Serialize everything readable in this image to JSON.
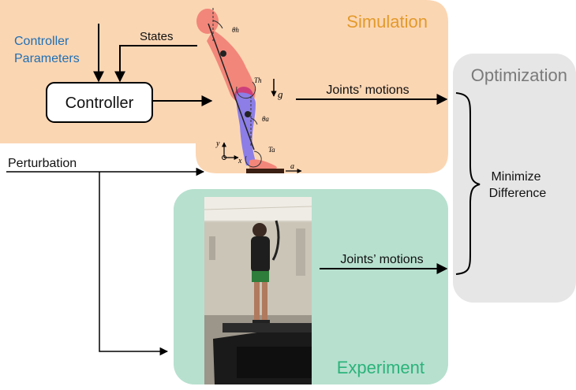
{
  "colors": {
    "simulation_bg": "#fbd6b3",
    "experiment_bg": "#b7e0cf",
    "optimization_bg": "#e6e6e6",
    "simulation_title": "#e39a2b",
    "experiment_title": "#2bb37a",
    "optimization_title": "#7a7a7a",
    "controller_params": "#1f6fb4",
    "body_upper": "#f2867a",
    "body_lower": "#8c7ee6",
    "hip_joint": "#c9377a"
  },
  "simulation": {
    "title": "Simulation",
    "states_label": "States",
    "controller_label": "Controller",
    "joints_motions_label": "Joints’ motions",
    "symbols": {
      "theta_h": "θh",
      "theta_a": "θa",
      "torque_h": "Th",
      "torque_a": "Ta",
      "gravity": "g",
      "axis_y": "y",
      "axis_x": "x",
      "accel": "a"
    }
  },
  "controller_parameters": {
    "line1": "Controller",
    "line2": "Parameters"
  },
  "perturbation_label": "Perturbation",
  "experiment": {
    "title": "Experiment",
    "joints_motions_label": "Joints’ motions"
  },
  "optimization": {
    "title": "Optimization",
    "minimize_line1": "Minimize",
    "minimize_line2": "Difference"
  }
}
